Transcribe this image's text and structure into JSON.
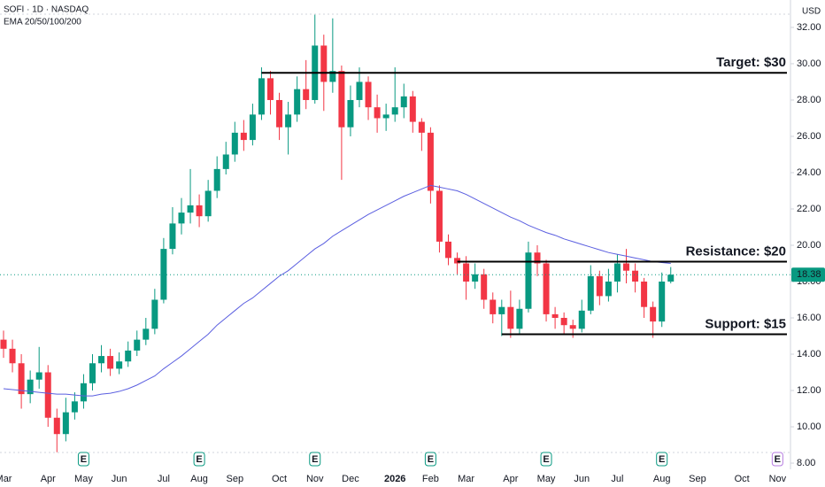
{
  "chart_data": {
    "type": "candlestick",
    "title": "SOFI · 1D · NASDAQ",
    "currency": "USD",
    "categories": [
      "Mar",
      null,
      null,
      null,
      null,
      "Apr",
      null,
      null,
      null,
      "May",
      null,
      null,
      null,
      "Jun",
      null,
      null,
      null,
      null,
      "Jul",
      null,
      null,
      null,
      "Aug",
      null,
      null,
      null,
      "Sep",
      null,
      null,
      null,
      null,
      "Oct",
      null,
      null,
      null,
      "Nov",
      null,
      null,
      null,
      "Dec",
      null,
      null,
      null,
      null,
      "2026",
      null,
      null,
      null,
      "Feb",
      null,
      null,
      null,
      "Mar",
      null,
      null,
      null,
      null,
      "Apr",
      null,
      null,
      null,
      "May",
      null,
      null,
      null,
      "Jun",
      null,
      null,
      null,
      "Jul",
      null,
      null,
      null,
      null,
      "Aug",
      null,
      null,
      null,
      "Sep",
      null,
      null,
      null,
      null,
      "Oct",
      null,
      null,
      null,
      "Nov"
    ],
    "candles": {
      "up_color": "#089981",
      "down_color": "#f23645",
      "open": [
        14.8,
        14.3,
        13.5,
        11.8,
        12.6,
        13.0,
        10.5,
        9.6,
        10.8,
        11.4,
        12.4,
        13.5,
        13.9,
        13.2,
        13.6,
        14.2,
        14.8,
        15.4,
        17.0,
        19.8,
        21.2,
        21.8,
        22.2,
        21.6,
        23.0,
        24.2,
        25.0,
        26.2,
        25.8,
        27.2,
        29.2,
        28.0,
        26.5,
        27.2,
        28.6,
        28.0,
        31.0,
        29.0,
        29.6,
        26.5,
        28.0,
        29.0,
        27.6,
        27.0,
        27.2,
        27.6,
        28.2,
        26.8,
        26.2,
        23.0,
        20.2,
        19.3,
        19.0,
        18.0,
        18.4,
        17.0,
        16.2,
        16.6,
        15.4,
        16.5,
        19.6,
        19.0,
        16.2,
        16.0,
        15.6,
        15.4,
        16.4,
        18.3,
        17.2,
        18.0,
        19.0,
        18.6,
        18.0,
        16.6,
        15.8,
        18.0,
        null,
        null,
        null,
        null,
        null,
        null,
        null,
        null,
        null,
        null,
        null,
        null
      ],
      "high": [
        15.3,
        14.8,
        14.0,
        13.1,
        14.4,
        13.4,
        11.0,
        11.6,
        11.9,
        12.9,
        14.0,
        14.5,
        14.3,
        14.1,
        14.7,
        15.3,
        16.0,
        17.6,
        20.4,
        22.1,
        22.6,
        24.2,
        22.8,
        23.6,
        24.9,
        25.7,
        26.8,
        26.9,
        27.8,
        29.8,
        29.6,
        28.4,
        27.9,
        29.3,
        30.2,
        32.7,
        31.6,
        32.5,
        29.9,
        28.8,
        29.8,
        29.3,
        28.3,
        27.8,
        29.8,
        28.9,
        28.5,
        27.0,
        26.5,
        23.3,
        20.6,
        19.6,
        19.4,
        19.0,
        18.7,
        17.4,
        17.0,
        17.5,
        17.0,
        20.2,
        20.0,
        19.2,
        16.6,
        16.3,
        15.9,
        17.0,
        18.9,
        18.6,
        18.7,
        19.5,
        19.8,
        19.0,
        18.2,
        16.9,
        18.5,
        18.8,
        null,
        null,
        null,
        null,
        null,
        null,
        null,
        null,
        null,
        null,
        null,
        null
      ],
      "low": [
        13.8,
        13.0,
        11.0,
        11.3,
        12.1,
        10.0,
        8.6,
        9.2,
        10.4,
        11.0,
        12.0,
        13.0,
        12.8,
        12.9,
        13.3,
        13.9,
        14.5,
        15.1,
        16.8,
        19.5,
        20.6,
        21.2,
        21.0,
        21.3,
        22.6,
        23.9,
        24.6,
        25.2,
        25.5,
        26.9,
        27.2,
        25.8,
        25.0,
        26.8,
        27.5,
        27.8,
        27.4,
        28.4,
        23.6,
        26.0,
        27.6,
        26.9,
        26.2,
        26.3,
        26.8,
        27.0,
        26.2,
        25.2,
        22.3,
        19.6,
        18.9,
        18.4,
        17.0,
        17.6,
        16.5,
        15.7,
        15.0,
        14.9,
        15.1,
        16.3,
        18.3,
        15.8,
        15.4,
        15.1,
        14.9,
        15.2,
        16.2,
        16.7,
        16.9,
        17.4,
        17.9,
        17.4,
        16.0,
        14.9,
        15.5,
        17.9,
        null,
        null,
        null,
        null,
        null,
        null,
        null,
        null,
        null,
        null,
        null,
        null
      ],
      "close": [
        14.3,
        13.5,
        11.8,
        12.6,
        13.0,
        10.5,
        9.6,
        10.8,
        11.4,
        12.4,
        13.5,
        13.9,
        13.2,
        13.6,
        14.2,
        14.8,
        15.4,
        17.0,
        19.8,
        21.2,
        21.8,
        22.2,
        21.6,
        23.0,
        24.2,
        25.0,
        26.2,
        25.8,
        27.2,
        29.2,
        28.0,
        26.5,
        27.2,
        28.6,
        28.0,
        31.0,
        29.0,
        29.6,
        26.5,
        28.0,
        29.0,
        27.6,
        27.0,
        27.2,
        27.6,
        28.2,
        26.8,
        26.2,
        23.0,
        20.2,
        19.3,
        19.0,
        18.0,
        18.4,
        17.0,
        16.2,
        16.6,
        15.4,
        16.5,
        19.6,
        19.0,
        16.2,
        16.0,
        15.6,
        15.4,
        16.4,
        18.3,
        17.2,
        18.0,
        19.0,
        18.6,
        18.0,
        16.6,
        15.8,
        18.0,
        18.38,
        null,
        null,
        null,
        null,
        null,
        null,
        null,
        null,
        null,
        null,
        null,
        null
      ]
    },
    "series": [
      {
        "name": "EMA 20/50/100/200",
        "color": "#5b5fe0",
        "values": [
          12.1,
          12.05,
          12.0,
          11.95,
          11.9,
          11.85,
          11.8,
          11.8,
          11.75,
          11.7,
          11.7,
          11.8,
          11.85,
          11.95,
          12.1,
          12.3,
          12.55,
          12.8,
          13.2,
          13.55,
          13.9,
          14.3,
          14.7,
          15.1,
          15.6,
          16.0,
          16.4,
          16.8,
          17.1,
          17.5,
          17.9,
          18.3,
          18.6,
          19.0,
          19.4,
          19.8,
          20.1,
          20.5,
          20.8,
          21.1,
          21.4,
          21.7,
          21.95,
          22.2,
          22.45,
          22.7,
          22.9,
          23.1,
          23.3,
          23.2,
          23.1,
          23.0,
          22.8,
          22.55,
          22.3,
          22.05,
          21.8,
          21.55,
          21.35,
          21.1,
          20.9,
          20.7,
          20.55,
          20.35,
          20.2,
          20.05,
          19.9,
          19.75,
          19.6,
          19.5,
          19.4,
          19.3,
          19.2,
          19.1,
          19.05,
          19.0,
          null,
          null,
          null,
          null,
          null,
          null,
          null,
          null,
          null,
          null,
          null,
          null
        ]
      }
    ],
    "levels": [
      {
        "label": "Target: $30",
        "value": 29.5,
        "start": 29
      },
      {
        "label": "Resistance: $20",
        "value": 19.1,
        "start": 51
      },
      {
        "label": "Support: $15",
        "value": 15.1,
        "start": 56
      }
    ],
    "earnings": {
      "label": "E",
      "at": [
        9,
        22,
        35,
        48,
        61,
        74,
        87
      ]
    },
    "ylim": [
      7.66,
      33.51
    ],
    "yticks": [
      {
        "value": 8,
        "label": "8.00"
      },
      {
        "value": 10,
        "label": "10.00"
      },
      {
        "value": 12,
        "label": "12.00"
      },
      {
        "value": 14,
        "label": "14.00"
      },
      {
        "value": 16,
        "label": "16.00"
      },
      {
        "value": 18,
        "label": "18.00"
      },
      {
        "value": 20,
        "label": "20.00"
      },
      {
        "value": 22,
        "label": "22.00"
      },
      {
        "value": 24,
        "label": "24.00"
      },
      {
        "value": 26,
        "label": "26.00"
      },
      {
        "value": 28,
        "label": "28.00"
      },
      {
        "value": 30,
        "label": "30.00"
      },
      {
        "value": 32,
        "label": "32.00"
      }
    ],
    "grid": false
  }
}
